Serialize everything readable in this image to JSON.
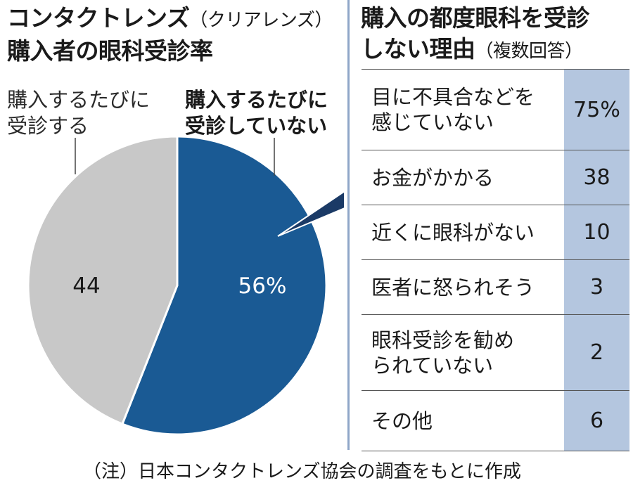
{
  "left": {
    "title_main": "コンタクトレンズ",
    "title_paren": "（クリアレンズ）",
    "title_line2": "購入者の眼科受診率",
    "label_left": "購入するたびに\n受診する",
    "label_right": "購入するたびに\n受診していない"
  },
  "right": {
    "title_line1": "購入の都度眼科を受診",
    "title_line2_main": "しない理由",
    "title_line2_paren": "（複数回答）"
  },
  "chart_data": [
    {
      "type": "pie",
      "slices": [
        {
          "label": "購入するたびに受診していない",
          "value": 56,
          "display": "56%",
          "color": "#1a5a94"
        },
        {
          "label": "購入するたびに受診する",
          "value": 44,
          "display": "44",
          "color": "#c8c8c8"
        }
      ]
    },
    {
      "type": "table",
      "rows": [
        {
          "reason": "目に不具合などを\n感じていない",
          "value": "75%"
        },
        {
          "reason": "お金がかかる",
          "value": "38"
        },
        {
          "reason": "近くに眼科がない",
          "value": "10"
        },
        {
          "reason": "医者に怒られそう",
          "value": "3"
        },
        {
          "reason": "眼科受診を勧め\nられていない",
          "value": "2"
        },
        {
          "reason": "その他",
          "value": "6"
        }
      ],
      "value_column_color": "#b4c6df"
    }
  ],
  "note": "（注）日本コンタクトレンズ協会の調査をもとに作成"
}
